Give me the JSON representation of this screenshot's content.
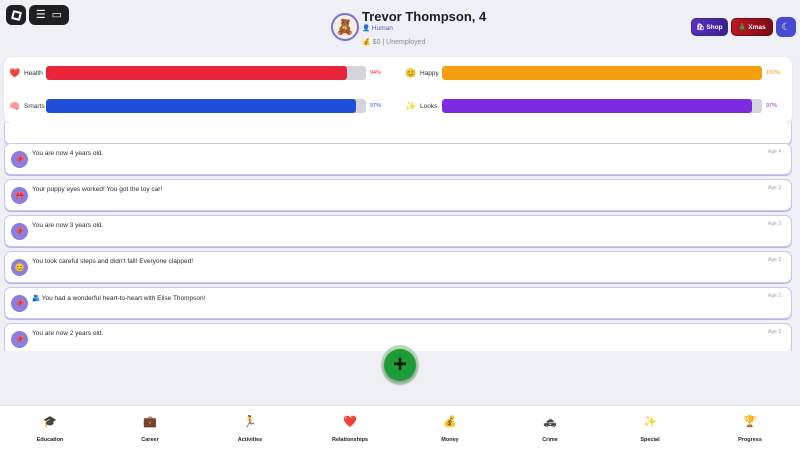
{
  "player": {
    "name": "Trevor Thompson, 4",
    "race": "Human",
    "race_icon": "👤",
    "job": "$0 | Unemployed",
    "job_icon": "💰",
    "avatar_icon": "🧸"
  },
  "header_buttons": {
    "shop": "Shop",
    "shop_icon": "🛍",
    "xmas": "Xmas",
    "xmas_icon": "🎄",
    "theme_icon": "☾"
  },
  "stats": [
    {
      "label": "Health",
      "value": "94%",
      "level": 94,
      "icon": "❤️",
      "color": "#e8243a"
    },
    {
      "label": "Happy",
      "value": "100%",
      "level": 100,
      "icon": "😊",
      "color": "#f59e0b"
    },
    {
      "label": "Smarts",
      "value": "97%",
      "level": 97,
      "icon": "🧠",
      "color": "#1f4fd8"
    },
    {
      "label": "Looks",
      "value": "97%",
      "level": 97,
      "icon": "✨",
      "color": "#7c2be0"
    }
  ],
  "feed": [
    {
      "text": "You are now 4 years old.",
      "age": "Age 4",
      "icon": "📌"
    },
    {
      "text": "Your puppy eyes worked! You got the toy car!",
      "age": "Age 3",
      "icon": "🎀"
    },
    {
      "text": "You are now 3 years old.",
      "age": "Age 3",
      "icon": "📌"
    },
    {
      "text": "You took careful steps and didn't fall! Everyone clapped!",
      "age": "Age 2",
      "icon": "😊"
    },
    {
      "text": "🫂 You had a wonderful heart-to-heart with Elise Thompson!",
      "age": "Age 2",
      "icon": "📌"
    },
    {
      "text": "You are now 2 years old.",
      "age": "Age 2",
      "icon": "📌"
    }
  ],
  "fab_icon": "+",
  "nav": [
    {
      "label": "Education",
      "icon": "🎓"
    },
    {
      "label": "Career",
      "icon": "💼"
    },
    {
      "label": "Activities",
      "icon": "🏃"
    },
    {
      "label": "Relationships",
      "icon": "❤️"
    },
    {
      "label": "Money",
      "icon": "💰"
    },
    {
      "label": "Crime",
      "icon": "🚓"
    },
    {
      "label": "Special",
      "icon": "✨"
    },
    {
      "label": "Progress",
      "icon": "🏆"
    }
  ]
}
